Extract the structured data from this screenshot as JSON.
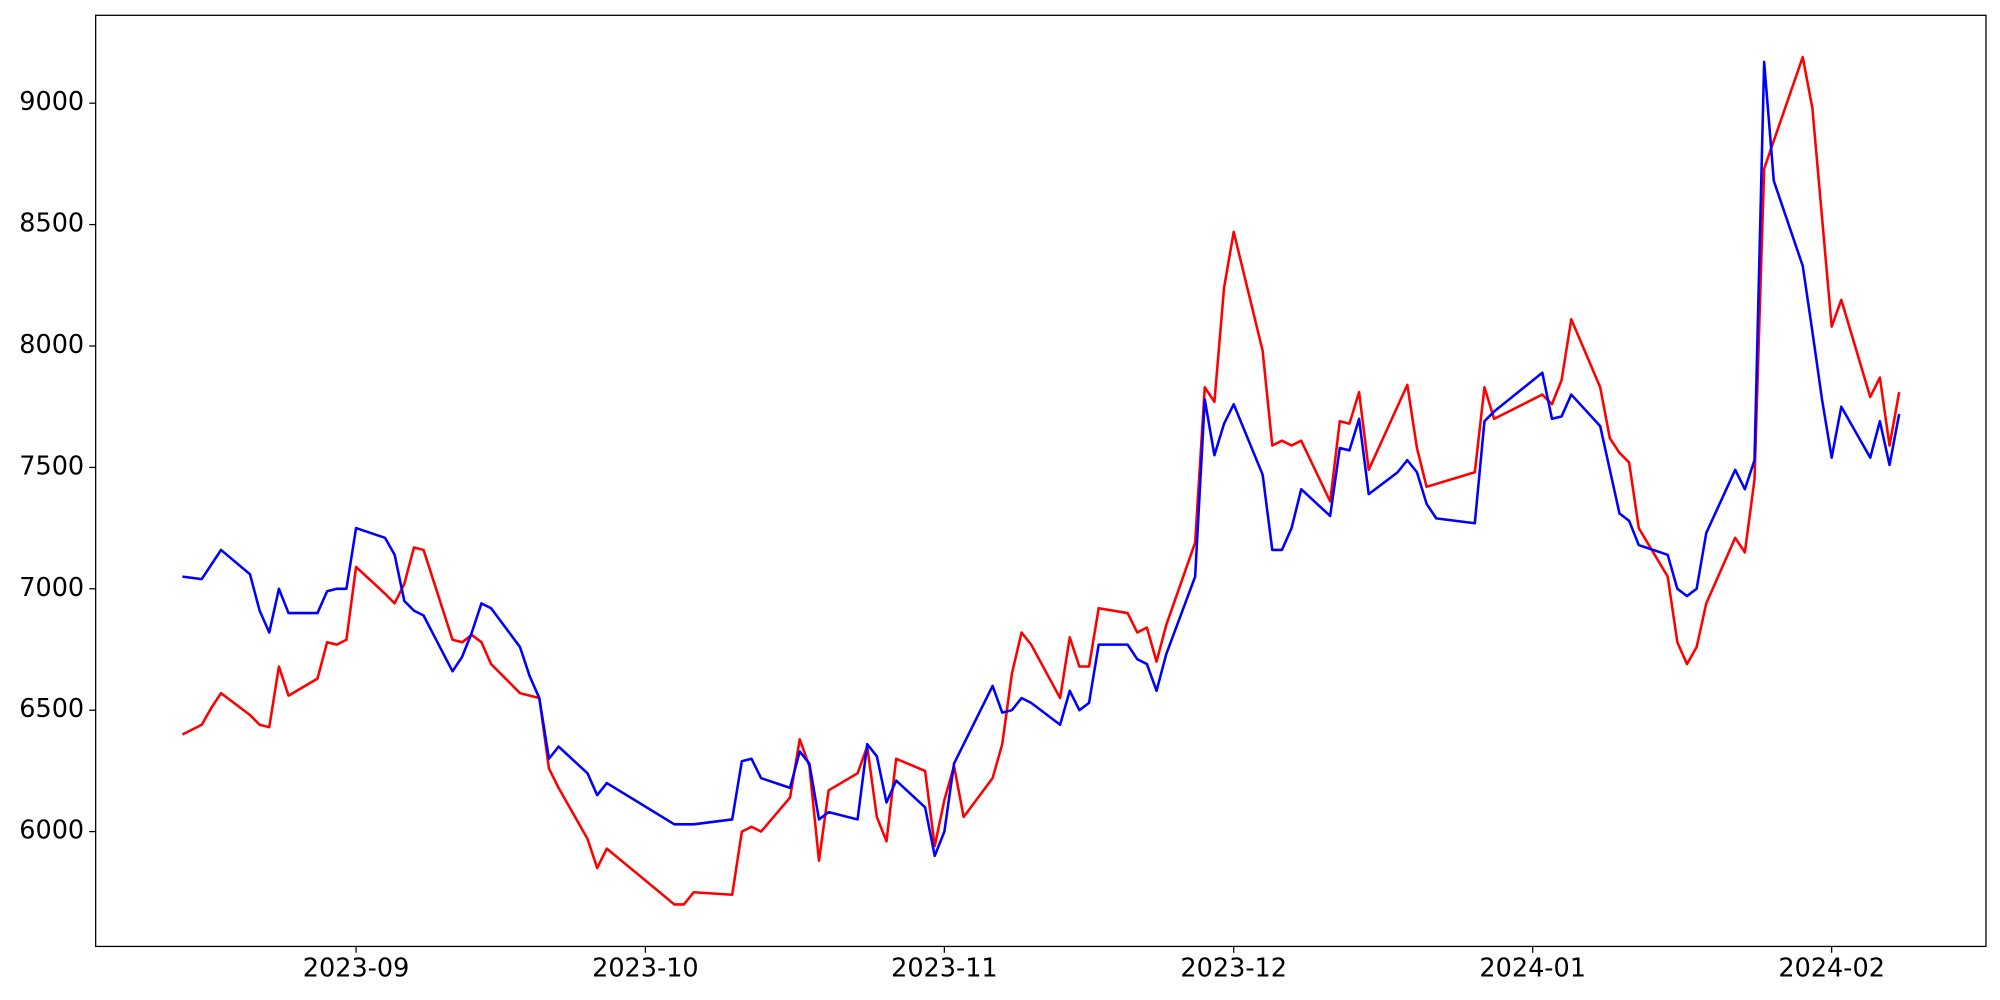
{
  "chart_data": {
    "type": "line",
    "xlim": [
      "2023-08-05",
      "2024-02-17"
    ],
    "xticks": [
      {
        "value": "2023-09-01",
        "label": "2023-09"
      },
      {
        "value": "2023-10-01",
        "label": "2023-10"
      },
      {
        "value": "2023-11-01",
        "label": "2023-11"
      },
      {
        "value": "2023-12-01",
        "label": "2023-12"
      },
      {
        "value": "2024-01-01",
        "label": "2024-01"
      },
      {
        "value": "2024-02-01",
        "label": "2024-02"
      }
    ],
    "ylim": [
      5527,
      9362
    ],
    "yticks": [
      6000,
      6500,
      7000,
      7500,
      8000,
      8500,
      9000
    ],
    "grid": false,
    "series": [
      {
        "color": "#ff0000",
        "x": [
          "2023-08-14",
          "2023-08-16",
          "2023-08-17",
          "2023-08-18",
          "2023-08-21",
          "2023-08-22",
          "2023-08-23",
          "2023-08-24",
          "2023-08-25",
          "2023-08-28",
          "2023-08-29",
          "2023-08-30",
          "2023-08-31",
          "2023-09-01",
          "2023-09-04",
          "2023-09-05",
          "2023-09-06",
          "2023-09-07",
          "2023-09-08",
          "2023-09-11",
          "2023-09-12",
          "2023-09-13",
          "2023-09-14",
          "2023-09-15",
          "2023-09-18",
          "2023-09-19",
          "2023-09-20",
          "2023-09-21",
          "2023-09-22",
          "2023-09-25",
          "2023-09-26",
          "2023-09-27",
          "2023-10-04",
          "2023-10-05",
          "2023-10-06",
          "2023-10-10",
          "2023-10-11",
          "2023-10-12",
          "2023-10-13",
          "2023-10-16",
          "2023-10-17",
          "2023-10-18",
          "2023-10-19",
          "2023-10-20",
          "2023-10-23",
          "2023-10-24",
          "2023-10-25",
          "2023-10-26",
          "2023-10-27",
          "2023-10-30",
          "2023-10-31",
          "2023-11-01",
          "2023-11-02",
          "2023-11-03",
          "2023-11-06",
          "2023-11-07",
          "2023-11-08",
          "2023-11-09",
          "2023-11-10",
          "2023-11-13",
          "2023-11-14",
          "2023-11-15",
          "2023-11-16",
          "2023-11-17",
          "2023-11-20",
          "2023-11-21",
          "2023-11-22",
          "2023-11-23",
          "2023-11-24",
          "2023-11-27",
          "2023-11-28",
          "2023-11-29",
          "2023-11-30",
          "2023-12-01",
          "2023-12-04",
          "2023-12-05",
          "2023-12-06",
          "2023-12-07",
          "2023-12-08",
          "2023-12-11",
          "2023-12-12",
          "2023-12-13",
          "2023-12-14",
          "2023-12-15",
          "2023-12-19",
          "2023-12-20",
          "2023-12-21",
          "2023-12-26",
          "2023-12-27",
          "2023-12-28",
          "2024-01-02",
          "2024-01-03",
          "2024-01-04",
          "2024-01-05",
          "2024-01-08",
          "2024-01-09",
          "2024-01-10",
          "2024-01-11",
          "2024-01-12",
          "2024-01-15",
          "2024-01-16",
          "2024-01-17",
          "2024-01-18",
          "2024-01-19",
          "2024-01-22",
          "2024-01-23",
          "2024-01-24",
          "2024-01-25",
          "2024-01-29",
          "2024-01-30",
          "2024-02-01",
          "2024-02-02",
          "2024-02-05",
          "2024-02-06",
          "2024-02-07",
          "2024-02-08"
        ],
        "values": [
          6400,
          6440,
          6510,
          6570,
          6480,
          6440,
          6430,
          6680,
          6560,
          6630,
          6780,
          6770,
          6790,
          7090,
          6980,
          6940,
          7020,
          7170,
          7160,
          6790,
          6780,
          6810,
          6780,
          6690,
          6570,
          6560,
          6550,
          6260,
          6180,
          5970,
          5850,
          5930,
          5700,
          5700,
          5750,
          5740,
          6000,
          6020,
          6000,
          6140,
          6380,
          6270,
          5880,
          6170,
          6240,
          6350,
          6060,
          5960,
          6300,
          6250,
          5940,
          6130,
          6270,
          6060,
          6220,
          6360,
          6650,
          6820,
          6770,
          6550,
          6800,
          6680,
          6680,
          6920,
          6900,
          6820,
          6840,
          6700,
          6850,
          7190,
          7830,
          7770,
          8240,
          8470,
          7980,
          7590,
          7610,
          7590,
          7610,
          7360,
          7690,
          7680,
          7810,
          7490,
          7840,
          7580,
          7420,
          7480,
          7830,
          7700,
          7800,
          7760,
          7860,
          8110,
          7830,
          7620,
          7560,
          7520,
          7250,
          7050,
          6780,
          6690,
          6760,
          6940,
          7210,
          7150,
          7450,
          8730,
          9190,
          8980,
          8080,
          8190,
          7790,
          7870,
          7590,
          7810
        ]
      },
      {
        "color": "#0000ff",
        "x": [
          "2023-08-14",
          "2023-08-16",
          "2023-08-17",
          "2023-08-18",
          "2023-08-21",
          "2023-08-22",
          "2023-08-23",
          "2023-08-24",
          "2023-08-25",
          "2023-08-28",
          "2023-08-29",
          "2023-08-30",
          "2023-08-31",
          "2023-09-01",
          "2023-09-04",
          "2023-09-05",
          "2023-09-06",
          "2023-09-07",
          "2023-09-08",
          "2023-09-11",
          "2023-09-12",
          "2023-09-13",
          "2023-09-14",
          "2023-09-15",
          "2023-09-18",
          "2023-09-19",
          "2023-09-20",
          "2023-09-21",
          "2023-09-22",
          "2023-09-25",
          "2023-09-26",
          "2023-09-27",
          "2023-10-04",
          "2023-10-05",
          "2023-10-06",
          "2023-10-10",
          "2023-10-11",
          "2023-10-12",
          "2023-10-13",
          "2023-10-16",
          "2023-10-17",
          "2023-10-18",
          "2023-10-19",
          "2023-10-20",
          "2023-10-23",
          "2023-10-24",
          "2023-10-25",
          "2023-10-26",
          "2023-10-27",
          "2023-10-30",
          "2023-10-31",
          "2023-11-01",
          "2023-11-02",
          "2023-11-06",
          "2023-11-07",
          "2023-11-08",
          "2023-11-09",
          "2023-11-10",
          "2023-11-13",
          "2023-11-14",
          "2023-11-15",
          "2023-11-16",
          "2023-11-17",
          "2023-11-20",
          "2023-11-21",
          "2023-11-22",
          "2023-11-23",
          "2023-11-24",
          "2023-11-27",
          "2023-11-28",
          "2023-11-29",
          "2023-11-30",
          "2023-12-01",
          "2023-12-04",
          "2023-12-05",
          "2023-12-06",
          "2023-12-07",
          "2023-12-08",
          "2023-12-11",
          "2023-12-12",
          "2023-12-13",
          "2023-12-14",
          "2023-12-15",
          "2023-12-18",
          "2023-12-19",
          "2023-12-20",
          "2023-12-21",
          "2023-12-22",
          "2023-12-26",
          "2023-12-27",
          "2023-12-28",
          "2024-01-02",
          "2024-01-03",
          "2024-01-04",
          "2024-01-05",
          "2024-01-08",
          "2024-01-09",
          "2024-01-10",
          "2024-01-11",
          "2024-01-12",
          "2024-01-15",
          "2024-01-16",
          "2024-01-17",
          "2024-01-18",
          "2024-01-19",
          "2024-01-22",
          "2024-01-23",
          "2024-01-24",
          "2024-01-25",
          "2024-01-26",
          "2024-01-29",
          "2024-01-30",
          "2024-01-31",
          "2024-02-01",
          "2024-02-02",
          "2024-02-05",
          "2024-02-06",
          "2024-02-07",
          "2024-02-08"
        ],
        "values": [
          7050,
          7040,
          7100,
          7160,
          7060,
          6910,
          6820,
          7000,
          6900,
          6900,
          6990,
          7000,
          7000,
          7250,
          7210,
          7140,
          6950,
          6910,
          6890,
          6660,
          6720,
          6820,
          6940,
          6920,
          6760,
          6640,
          6550,
          6300,
          6350,
          6240,
          6150,
          6200,
          6030,
          6030,
          6030,
          6050,
          6290,
          6300,
          6220,
          6180,
          6330,
          6280,
          6050,
          6080,
          6050,
          6360,
          6310,
          6120,
          6210,
          6100,
          5900,
          6000,
          6280,
          6600,
          6490,
          6500,
          6550,
          6530,
          6440,
          6580,
          6500,
          6530,
          6770,
          6770,
          6710,
          6690,
          6580,
          6730,
          7050,
          7780,
          7550,
          7680,
          7760,
          7470,
          7160,
          7160,
          7250,
          7410,
          7300,
          7580,
          7570,
          7700,
          7390,
          7480,
          7530,
          7480,
          7350,
          7290,
          7270,
          7690,
          7730,
          7890,
          7700,
          7710,
          7800,
          7670,
          7490,
          7310,
          7280,
          7180,
          7140,
          7000,
          6970,
          7000,
          7230,
          7490,
          7410,
          7530,
          9170,
          8680,
          8330,
          8060,
          7780,
          7540,
          7750,
          7540,
          7690,
          7510,
          7720
        ]
      }
    ]
  }
}
